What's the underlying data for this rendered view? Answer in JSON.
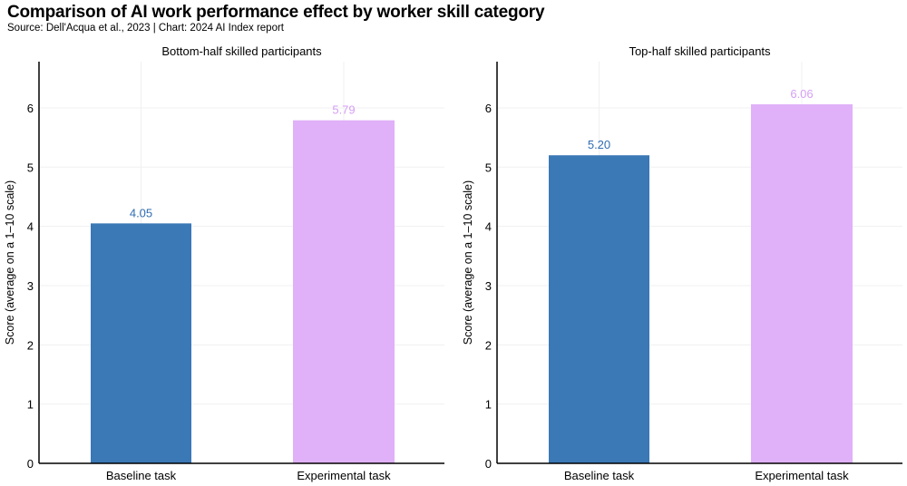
{
  "title": "Comparison of AI work performance effect by worker skill category",
  "subtitle": "Source: Dell'Acqua et al., 2023 | Chart: 2024 AI Index report",
  "colors": {
    "baseline": "#3b78b6",
    "baseline_label": "#2f6cb1",
    "experimental": "#e0b0f8",
    "experimental_label": "#d59ff5",
    "grid": "#f0f0f0"
  },
  "chart_data": [
    {
      "type": "bar",
      "title": "Bottom-half skilled participants",
      "ylabel": "Score (average on a 1–10 scale)",
      "categories": [
        "Baseline task",
        "Experimental task"
      ],
      "values": [
        4.05,
        5.79
      ],
      "data_labels": [
        "4.05",
        "5.79"
      ],
      "yticks": [
        "0",
        "1",
        "2",
        "3",
        "4",
        "5",
        "6"
      ],
      "ylim": [
        0,
        6.78
      ],
      "grid": true
    },
    {
      "type": "bar",
      "title": "Top-half skilled participants",
      "ylabel": "Score (average on a 1–10 scale)",
      "categories": [
        "Baseline task",
        "Experimental task"
      ],
      "values": [
        5.2,
        6.06
      ],
      "data_labels": [
        "5.20",
        "6.06"
      ],
      "yticks": [
        "0",
        "1",
        "2",
        "3",
        "4",
        "5",
        "6"
      ],
      "ylim": [
        0,
        6.78
      ],
      "grid": true
    }
  ]
}
